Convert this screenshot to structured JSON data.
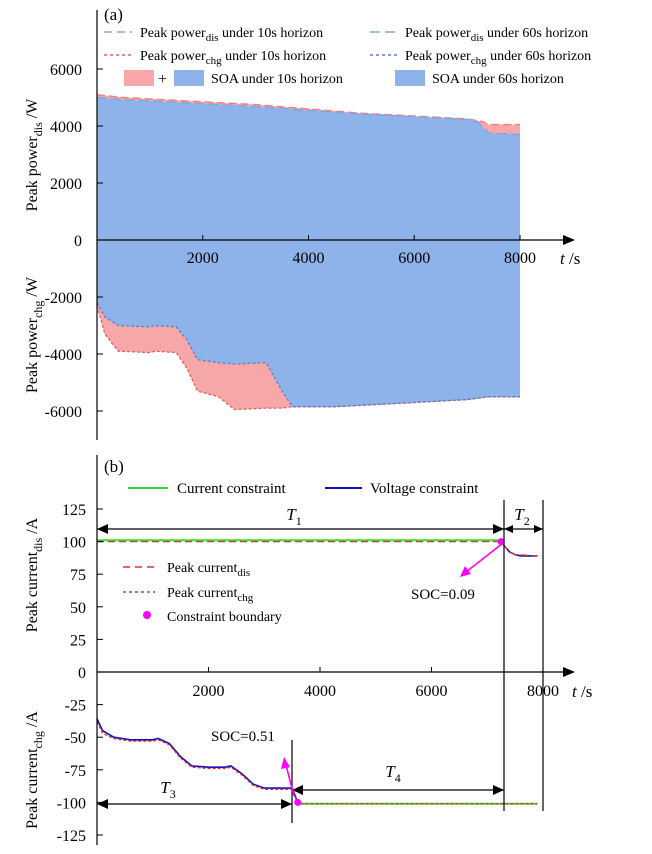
{
  "colors": {
    "axis": "#000000",
    "peak_dis_10s": "#f08080",
    "peak_chg_10s": "#e06060",
    "peak_dis_60s": "#7ea6e0",
    "peak_chg_60s": "#5b7fc7",
    "soa_10s_fill": "#f7a7a7",
    "soa_60s_fill": "#8db3ea",
    "current_constraint": "#33dd33",
    "voltage_constraint": "#1111bb",
    "peak_current_dis": "#e03030",
    "peak_current_chg": "#e03030",
    "boundary_marker": "#ff00ff",
    "arrow": "#ff00ff"
  },
  "chart_data": [
    {
      "type": "area",
      "panel_label": "(a)",
      "xlabel": "t /s",
      "ylabel_top": "Peak power",
      "ylabel_top_sub": "dis",
      "ylabel_top_unit": " /W",
      "ylabel_bottom": "Peak power",
      "ylabel_bottom_sub": "chg",
      "ylabel_bottom_unit": " /W",
      "xlim": [
        0,
        8000
      ],
      "ylim": [
        -7000,
        7500
      ],
      "xticks": [
        "2000",
        "4000",
        "6000",
        "8000"
      ],
      "yticks": [
        "-6000",
        "-4000",
        "-2000",
        "0",
        "2000",
        "4000",
        "6000"
      ],
      "legend": {
        "dis10": {
          "pre": "Peak power",
          "sub": "dis",
          "post": " under 10s horizon"
        },
        "dis60": {
          "pre": "Peak power",
          "sub": "dis",
          "post": " under 60s horizon"
        },
        "chg10": {
          "pre": "Peak power",
          "sub": "chg",
          "post": " under 10s horizon"
        },
        "chg60": {
          "pre": "Peak power",
          "sub": "chg",
          "post": " under 60s horizon"
        },
        "plus": "+",
        "soa10": "SOA under 10s horizon",
        "soa60": "SOA under 60s horizon"
      },
      "series": [
        {
          "name": "Peak power dis under 10s horizon",
          "x": [
            0,
            500,
            1000,
            2000,
            3000,
            4000,
            5000,
            6000,
            7000,
            7300,
            7400,
            8000
          ],
          "values": [
            5100,
            5000,
            4950,
            4850,
            4750,
            4600,
            4450,
            4350,
            4250,
            4150,
            4050,
            4050
          ]
        },
        {
          "name": "Peak power dis under 60s horizon",
          "x": [
            0,
            500,
            1000,
            2000,
            3000,
            4000,
            5000,
            6000,
            7000,
            7200,
            7400,
            8000
          ],
          "values": [
            5000,
            4920,
            4880,
            4780,
            4680,
            4550,
            4420,
            4330,
            4230,
            4150,
            3750,
            3700
          ]
        },
        {
          "name": "Peak power chg under 10s horizon",
          "x": [
            0,
            150,
            400,
            1000,
            1100,
            1500,
            1700,
            1900,
            2300,
            2600,
            3200,
            3500,
            3700,
            4500,
            5500,
            6000,
            7000,
            7400,
            8000
          ],
          "values": [
            -2300,
            -3300,
            -3900,
            -3950,
            -3900,
            -3950,
            -4500,
            -5300,
            -5500,
            -5950,
            -5900,
            -5900,
            -5850,
            -5850,
            -5750,
            -5700,
            -5600,
            -5500,
            -5500
          ]
        },
        {
          "name": "Peak power chg under 60s horizon",
          "x": [
            0,
            150,
            400,
            1000,
            1100,
            1500,
            1700,
            1900,
            2300,
            2600,
            3200,
            3500,
            3700,
            4500,
            5500,
            6000,
            7000,
            7400,
            8000
          ],
          "values": [
            -2200,
            -2700,
            -3000,
            -3050,
            -3000,
            -3050,
            -3500,
            -4200,
            -4300,
            -4350,
            -4300,
            -5300,
            -5850,
            -5850,
            -5750,
            -5700,
            -5600,
            -5500,
            -5500
          ]
        }
      ]
    },
    {
      "type": "line",
      "panel_label": "(b)",
      "xlabel": "t /s",
      "ylabel_top": "Peak current",
      "ylabel_top_sub": "dis",
      "ylabel_top_unit": " /A",
      "ylabel_bottom": "Peak current",
      "ylabel_bottom_sub": "chg",
      "ylabel_bottom_unit": " /A",
      "xlim": [
        0,
        8000
      ],
      "ylim": [
        -137,
        150
      ],
      "xticks": [
        "2000",
        "4000",
        "6000",
        "8000"
      ],
      "yticks": [
        "-125",
        "-100",
        "-75",
        "-50",
        "-25",
        "0",
        "25",
        "50",
        "75",
        "100",
        "125"
      ],
      "legend": {
        "current": "Current constraint",
        "voltage": "Voltage constraint",
        "dis": {
          "pre": "Peak current",
          "sub": "dis"
        },
        "chg": {
          "pre": "Peak current",
          "sub": "chg"
        },
        "boundary": "Constraint  boundary"
      },
      "annotations": {
        "soc_top": "SOC=0.09",
        "soc_bottom": "SOC=0.51",
        "t1": {
          "main": "T",
          "sub": "1"
        },
        "t2": {
          "main": "T",
          "sub": "2"
        },
        "t3": {
          "main": "T",
          "sub": "3"
        },
        "t4": {
          "main": "T",
          "sub": "4"
        }
      },
      "boundaries": [
        {
          "x": 7250,
          "y": 100
        },
        {
          "x": 3600,
          "y": -100
        }
      ],
      "series": [
        {
          "name": "Current constraint",
          "segments": [
            {
              "x": [
                0,
                7250
              ],
              "values": [
                101,
                101
              ]
            },
            {
              "x": [
                3600,
                7900
              ],
              "values": [
                -101,
                -101
              ]
            }
          ]
        },
        {
          "name": "Voltage constraint",
          "segments": [
            {
              "x": [
                7250,
                7300,
                7400,
                7500,
                7600,
                7900
              ],
              "values": [
                100,
                97,
                92,
                90,
                89,
                89
              ]
            },
            {
              "x": [
                0,
                100,
                300,
                600,
                1000,
                1100,
                1300,
                1500,
                1700,
                2000,
                2300,
                2400,
                2600,
                2800,
                3000,
                3300,
                3500,
                3600
              ],
              "values": [
                -36,
                -45,
                -50,
                -52,
                -52,
                -51,
                -55,
                -65,
                -72,
                -73,
                -73,
                -72,
                -78,
                -86,
                -89,
                -89,
                -89,
                -100
              ]
            }
          ]
        },
        {
          "name": "Peak current dis",
          "x": [
            0,
            7250,
            7300,
            7400,
            7500,
            7900
          ],
          "values": [
            100,
            100,
            97,
            92,
            90,
            89
          ]
        },
        {
          "name": "Peak current chg",
          "x": [
            0,
            100,
            300,
            600,
            1000,
            1100,
            1300,
            1500,
            1700,
            2000,
            2300,
            2400,
            2600,
            2800,
            3000,
            3300,
            3500,
            3600,
            4000,
            7900
          ],
          "values": [
            -38,
            -47,
            -51,
            -53,
            -53,
            -52,
            -56,
            -66,
            -73,
            -74,
            -74,
            -73,
            -79,
            -87,
            -90,
            -90,
            -90,
            -101,
            -101,
            -101
          ]
        }
      ]
    }
  ]
}
